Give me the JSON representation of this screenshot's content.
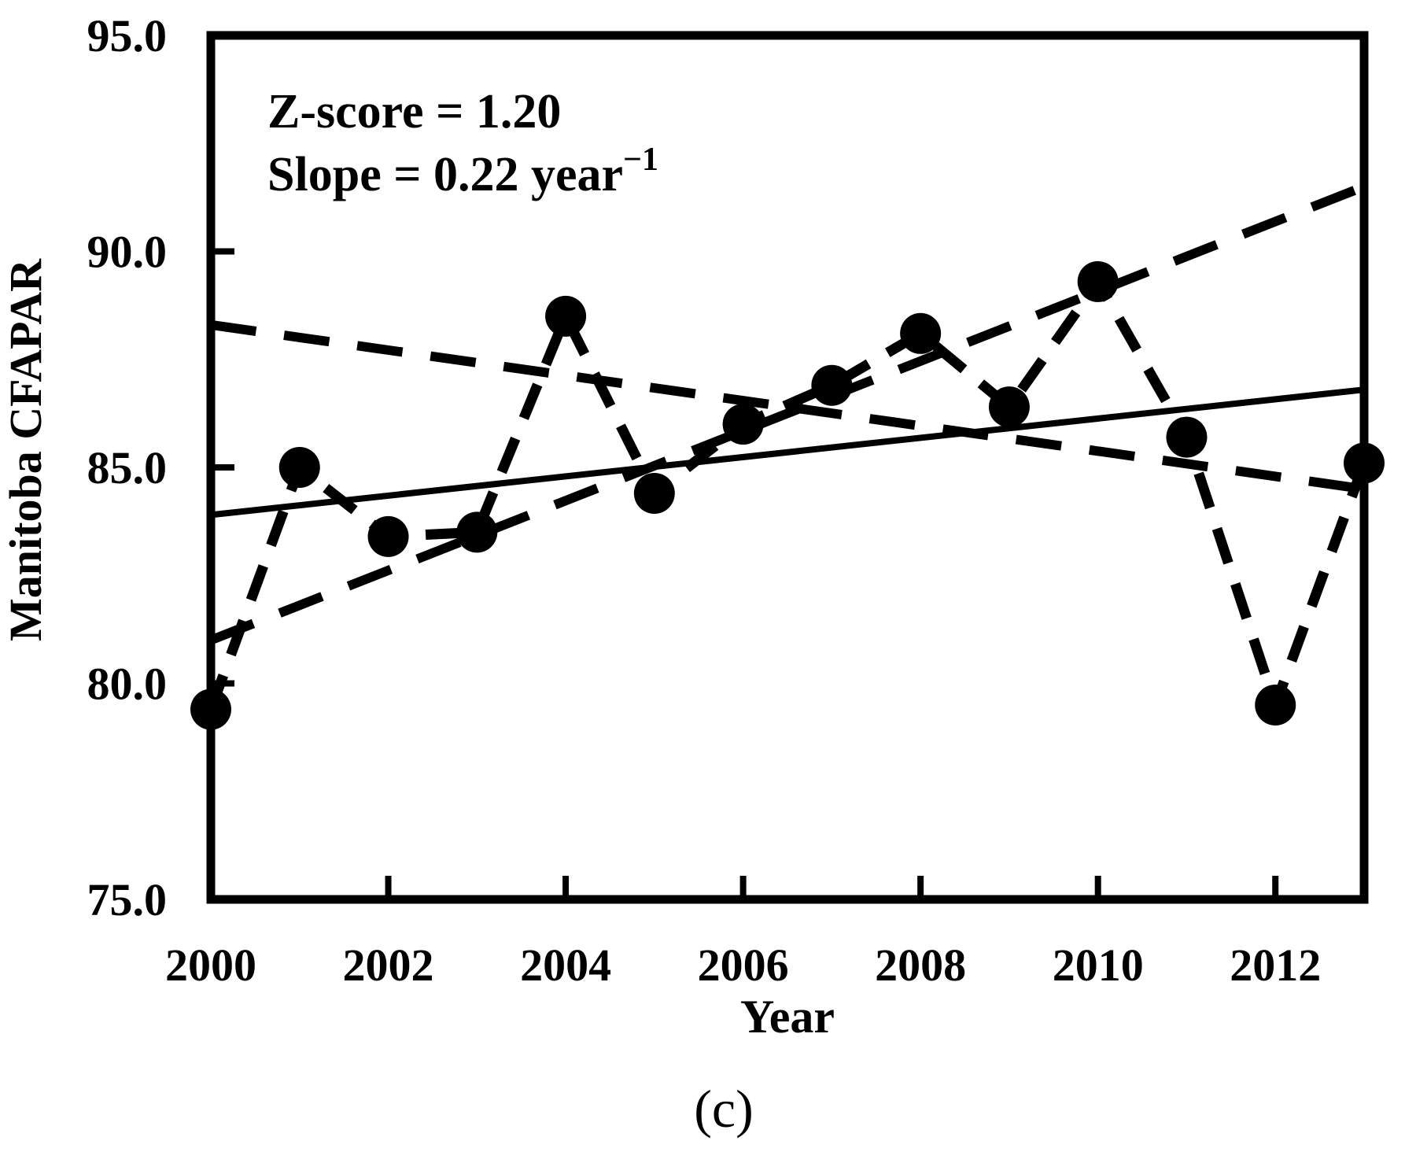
{
  "figure": {
    "caption": "(c)",
    "background_color": "#ffffff",
    "ink_color": "#000000"
  },
  "chart_data": {
    "type": "line",
    "title": "",
    "xlabel": "Year",
    "ylabel": "Manitoba CFAPAR",
    "xlim": [
      2000,
      2013
    ],
    "ylim": [
      75.0,
      95.0
    ],
    "grid": false,
    "legend": "none",
    "annotation": {
      "z_score": 1.2,
      "slope_per_year": 0.22,
      "line1": "Z-score = 1.20",
      "line2_main": "Slope = 0.22 year",
      "line2_superscript": "−1"
    },
    "x_ticks": [
      2000,
      2002,
      2004,
      2006,
      2008,
      2010,
      2012
    ],
    "x_tick_labels": [
      "2000",
      "2002",
      "2004",
      "2006",
      "2008",
      "2010",
      "2012"
    ],
    "y_ticks": [
      75.0,
      80.0,
      85.0,
      90.0,
      95.0
    ],
    "y_tick_labels": [
      "75.0",
      "80.0",
      "85.0",
      "90.0",
      "95.0"
    ],
    "x": [
      2000,
      2001,
      2002,
      2003,
      2004,
      2005,
      2006,
      2007,
      2008,
      2009,
      2010,
      2011,
      2012,
      2013
    ],
    "series": [
      {
        "name": "Manitoba CFAPAR annual values",
        "marker": "filled-circle",
        "line_style": "long-dash",
        "color": "#000000",
        "values": [
          79.4,
          85.0,
          83.4,
          83.5,
          88.5,
          84.4,
          86.0,
          86.9,
          88.1,
          86.4,
          89.3,
          85.7,
          79.5,
          85.1
        ]
      }
    ],
    "trend_lines": [
      {
        "name": "overall-linear-trend",
        "style": "solid",
        "x0": 2000,
        "y0": 83.9,
        "x1": 2013,
        "y1": 86.8
      },
      {
        "name": "upper-envelope-trend",
        "style": "dashed",
        "x0": 2000,
        "y0": 81.0,
        "x1": 2013,
        "y1": 91.5
      },
      {
        "name": "lower-envelope-trend",
        "style": "dashed",
        "x0": 2000,
        "y0": 88.3,
        "x1": 2013,
        "y1": 84.5
      }
    ]
  }
}
